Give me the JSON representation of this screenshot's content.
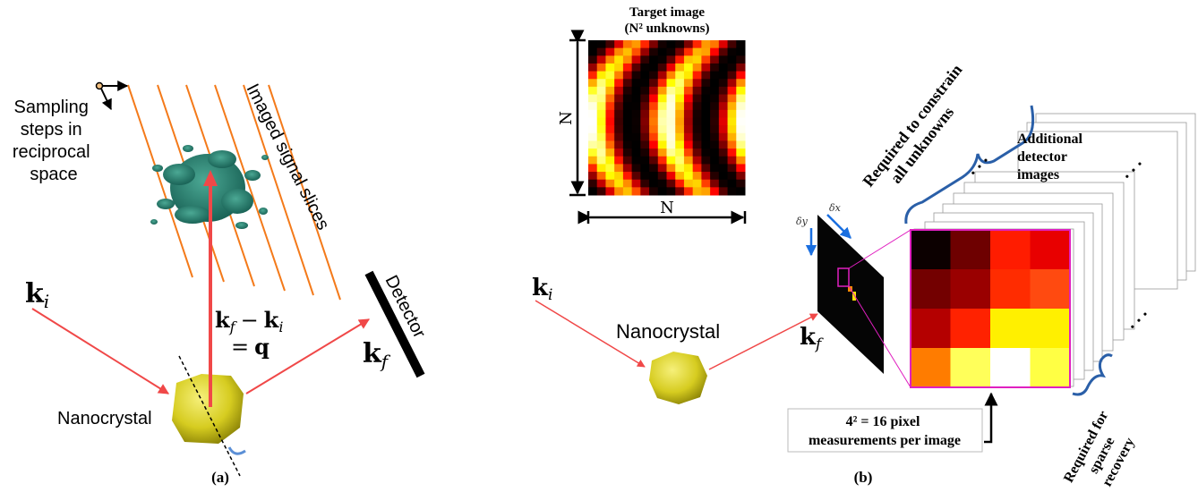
{
  "panel_a": {
    "sampling_label": [
      "Sampling",
      "steps in",
      "reciprocal",
      "space"
    ],
    "slices_label": "Imaged signal slices",
    "incident_wavevector": {
      "symbol": "k",
      "subscript": "i"
    },
    "momentum_transfer": {
      "symbol1": "k",
      "sub1": "f",
      "operator": "−",
      "symbol2": "k",
      "sub2": "i",
      "equals": "=",
      "result": "q"
    },
    "detector_label": "Detector",
    "scattered_wavevector": {
      "symbol": "k",
      "subscript": "f"
    },
    "crystal_label": "Nanocrystal",
    "caption": "(a)"
  },
  "panel_b": {
    "target_title": "Target image",
    "target_subtitle": "(N² unknowns)",
    "height_label": "N",
    "width_label": "N",
    "incident_wavevector": {
      "symbol": "k",
      "subscript": "i"
    },
    "crystal_label": "Nanocrystal",
    "scattered_wavevector": {
      "symbol": "k",
      "subscript": "f"
    },
    "step_y": "δy",
    "step_x": "δx",
    "constrain_label": [
      "Required to constrain",
      "all unknowns"
    ],
    "additional_label": [
      "Additional",
      "detector",
      "images"
    ],
    "ellipsis": ". . .",
    "measurement_label": [
      "4² = 16 pixel",
      "measurements per image"
    ],
    "sparse_label": [
      "Required for",
      "sparse",
      "recovery"
    ],
    "caption": "(b)"
  }
}
